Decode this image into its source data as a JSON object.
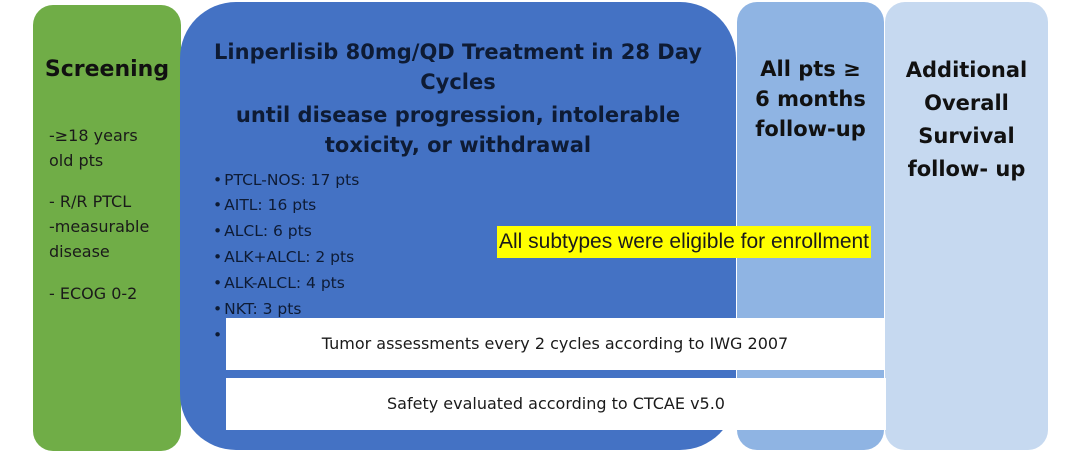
{
  "screening": {
    "title": "Screening",
    "lines": [
      "-≥18 years",
      "old pts",
      "- R/R PTCL",
      "-measurable",
      "disease",
      "- ECOG 0-2"
    ]
  },
  "treatment": {
    "title_lines": [
      "Linperlisib 80mg/QD Treatment in 28 Day",
      "Cycles",
      "until disease progression, intolerable",
      "toxicity, or withdrawal"
    ],
    "bullets": [
      "PTCL-NOS: 17 pts",
      "AITL: 16 pts",
      "ALCL: 6 pts",
      "ALK+ALCL: 2 pts",
      "ALK-ALCL: 4 pts",
      "NKT: 3 pts"
    ],
    "bullet_symbol": "•"
  },
  "followup": {
    "title_lines": [
      "All pts ≥",
      "6 months",
      "follow-up"
    ]
  },
  "survival": {
    "title_lines": [
      "Additional",
      "Overall",
      "Survival",
      "follow- up"
    ]
  },
  "bars": {
    "tumor": "Tumor assessments every 2 cycles according to IWG 2007",
    "safety": "Safety evaluated according to CTCAE v5.0"
  },
  "highlight": "All subtypes were eligible for enrollment",
  "colors": {
    "screening": "#70ad47",
    "treatment": "#4472c4",
    "followup": "#8fb4e3",
    "survival": "#c6d9f0",
    "highlight": "#ffff00"
  }
}
